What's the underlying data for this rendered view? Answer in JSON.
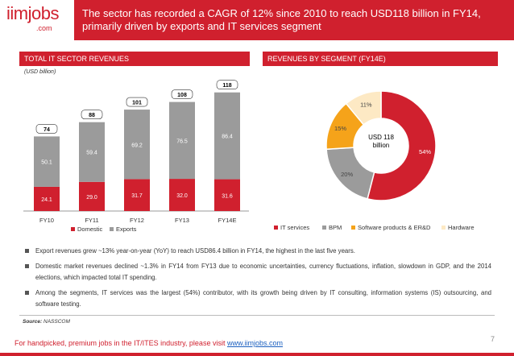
{
  "header": {
    "logo_main": "iimjobs",
    "logo_sub": ".com",
    "title": "The sector has recorded a CAGR of 12% since 2010 to reach USD118 billion in FY14, primarily driven by exports and IT services segment"
  },
  "left_section": {
    "title": "TOTAL IT SECTOR REVENUES",
    "unit": "(USD billion)"
  },
  "right_section": {
    "title": "REVENUES BY SEGMENT (FY14E)",
    "center_label_line1": "USD 118",
    "center_label_line2": "billion"
  },
  "colors": {
    "domestic": "#d0202e",
    "exports": "#9b9b9b",
    "it_services": "#d0202e",
    "bpm": "#9b9b9b",
    "software": "#f5a31a",
    "hardware": "#fde9c4",
    "accent": "#d0202e"
  },
  "chart_data": [
    {
      "type": "bar",
      "stacked": true,
      "categories": [
        "FY10",
        "FY11",
        "FY12",
        "FY13",
        "FY14E"
      ],
      "series": [
        {
          "name": "Domestic",
          "values": [
            24.1,
            29.0,
            31.7,
            32.0,
            31.6
          ]
        },
        {
          "name": "Exports",
          "values": [
            50.1,
            59.4,
            69.2,
            76.5,
            86.4
          ]
        }
      ],
      "totals": [
        74,
        88,
        101,
        108,
        118
      ],
      "value_labels": {
        "Domestic": [
          "24.1",
          "29.0",
          "31.7",
          "32.0",
          "31.6"
        ],
        "Exports": [
          "50.1",
          "59.4",
          "69.2",
          "76.5",
          "86.4"
        ],
        "totals": [
          "74",
          "88",
          "101",
          "108",
          "118"
        ]
      },
      "ylim": [
        0,
        125
      ],
      "legend": "bottom"
    },
    {
      "type": "pie",
      "donut": true,
      "labels": [
        "IT services",
        "BPM",
        "Software products & ER&D",
        "Hardware"
      ],
      "values": [
        54,
        20,
        15,
        11
      ],
      "value_labels": [
        "54%",
        "20%",
        "15%",
        "11%"
      ],
      "legend": "bottom"
    }
  ],
  "bullets": [
    "Export revenues grew ~13% year-on-year (YoY) to reach USD86.4 billion in FY14, the highest in the last five years.",
    "Domestic market revenues declined ~1.3% in FY14 from FY13 due to economic uncertainties, currency fluctuations, inflation, slowdown in GDP, and the 2014 elections, which impacted total IT spending.",
    "Among the segments, IT services was the largest (54%) contributor, with its growth being driven by IT consulting, information systems (IS) outsourcing, and software testing."
  ],
  "source": {
    "label": "Source:",
    "text": "NASSCOM"
  },
  "footer": {
    "text": "For handpicked, premium jobs in the IT/ITES industry, please visit ",
    "link": "www.iimjobs.com",
    "page": "7"
  }
}
